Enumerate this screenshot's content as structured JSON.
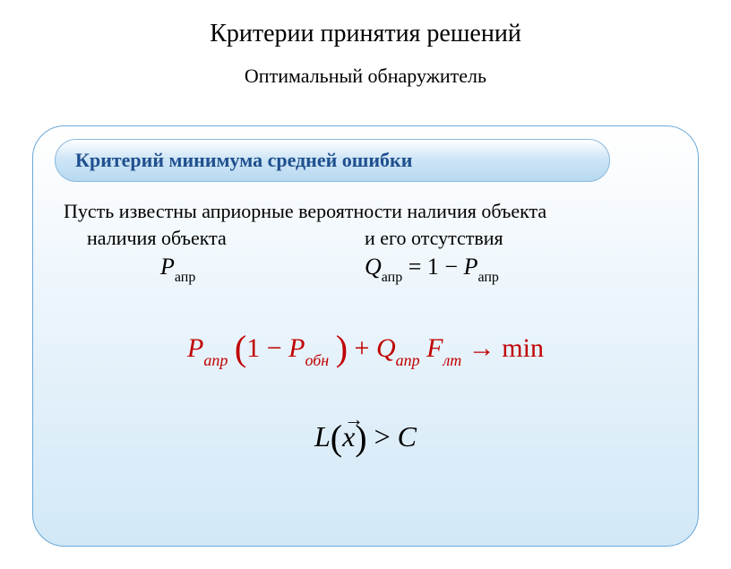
{
  "title": "Критерии принятия решений",
  "subtitle": "Оптимальный обнаружитель",
  "criterion_label": "Критерий минимума средней ошибки",
  "intro_line": "Пусть известны априорные вероятности наличия объекта",
  "col1_label": "наличия объекта",
  "col2_label": "и его отсутствия",
  "eq1_var": "P",
  "eq1_sub": "апр",
  "eq2_lhs_var": "Q",
  "eq2_lhs_sub": "апр",
  "eq2_eq": " = 1 − ",
  "eq2_rhs_var": "P",
  "eq2_rhs_sub": "апр",
  "red": {
    "P": "P",
    "apr": "апр",
    "lp": "(",
    "one_minus": "1 − ",
    "Pobn": "P",
    "obn": "обн",
    "rp": ")",
    "plus": " + ",
    "Q": "Q",
    "apr2": "апр",
    "sp": "  ",
    "F": "F",
    "lt": "лт",
    "arrow": "  →  ",
    "min": "min"
  },
  "f2": {
    "L": "L",
    "lp": "(",
    "x": "x",
    "arr": "→",
    "rp": ")",
    "gt": " > ",
    "C": "C"
  },
  "colors": {
    "panel_border": "#6aa8d8",
    "pill_border": "#8cb8dc",
    "criterion_text": "#1f4f8f",
    "red": "#c00000",
    "background": "#ffffff"
  }
}
